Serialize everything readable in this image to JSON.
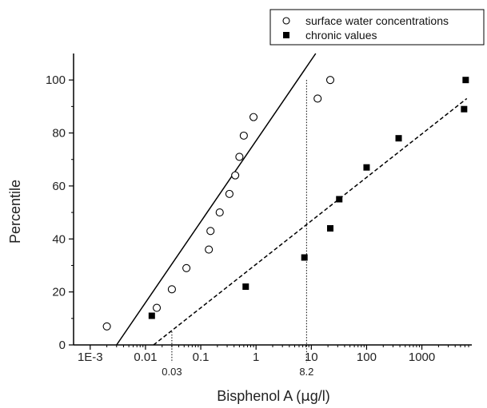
{
  "chart_data": {
    "type": "scatter",
    "xlabel_prefix": "Bisphenol A (",
    "xlabel_mu": "μ",
    "xlabel_suffix": "g/l)",
    "ylabel": "Percentile",
    "xscale": "log",
    "xlim": [
      0.0005,
      8000
    ],
    "ylim": [
      0,
      110
    ],
    "x_ticks": [
      {
        "value": 0.001,
        "label": "1E-3"
      },
      {
        "value": 0.01,
        "label": "0.01"
      },
      {
        "value": 0.1,
        "label": "0.1"
      },
      {
        "value": 1,
        "label": "1"
      },
      {
        "value": 10,
        "label": "10"
      },
      {
        "value": 100,
        "label": "100"
      },
      {
        "value": 1000,
        "label": "1000"
      }
    ],
    "y_ticks": [
      0,
      20,
      40,
      60,
      80,
      100
    ],
    "grid": false,
    "legend_position": "top-right",
    "series": [
      {
        "name": "surface water concentrations",
        "marker": "open-circle",
        "points": [
          {
            "x": 0.002,
            "y": 7
          },
          {
            "x": 0.016,
            "y": 14
          },
          {
            "x": 0.03,
            "y": 21
          },
          {
            "x": 0.055,
            "y": 29
          },
          {
            "x": 0.14,
            "y": 36
          },
          {
            "x": 0.15,
            "y": 43
          },
          {
            "x": 0.22,
            "y": 50
          },
          {
            "x": 0.33,
            "y": 57
          },
          {
            "x": 0.42,
            "y": 64
          },
          {
            "x": 0.5,
            "y": 71
          },
          {
            "x": 0.6,
            "y": 79
          },
          {
            "x": 0.9,
            "y": 86
          },
          {
            "x": 13,
            "y": 93
          },
          {
            "x": 22,
            "y": 100
          }
        ],
        "fit": {
          "style": "solid",
          "from": {
            "x": 0.003,
            "y": 0
          },
          "to": {
            "x": 12,
            "y": 110
          }
        }
      },
      {
        "name": "chronic values",
        "marker": "filled-square",
        "points": [
          {
            "x": 0.013,
            "y": 11
          },
          {
            "x": 0.65,
            "y": 22
          },
          {
            "x": 7.5,
            "y": 33
          },
          {
            "x": 22,
            "y": 44
          },
          {
            "x": 32,
            "y": 55
          },
          {
            "x": 100,
            "y": 67
          },
          {
            "x": 380,
            "y": 78
          },
          {
            "x": 5800,
            "y": 89
          },
          {
            "x": 6200,
            "y": 100
          }
        ],
        "fit": {
          "style": "dashed",
          "from": {
            "x": 0.014,
            "y": 0
          },
          "to": {
            "x": 6500,
            "y": 93
          }
        }
      }
    ],
    "annotations": [
      {
        "label": "0.03",
        "x": 0.03,
        "y": 5,
        "style": "dotted-drop"
      },
      {
        "label": "8.2",
        "x": 8.2,
        "y": 100,
        "style": "dotted-drop"
      }
    ]
  }
}
